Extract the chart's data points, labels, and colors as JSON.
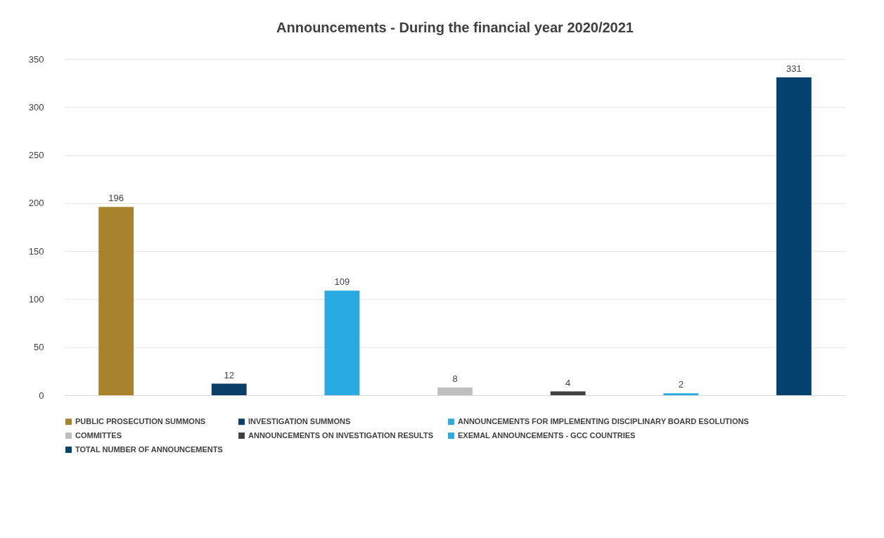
{
  "chart_data": {
    "type": "bar",
    "title": "Announcements - During the financial year 2020/2021",
    "categories": [
      null,
      null,
      null,
      null,
      null,
      null,
      null
    ],
    "series": [
      {
        "name": "PUBLIC PROSECUTION SUMMONS",
        "color": "#a8832c",
        "values": [
          196,
          null,
          null,
          null,
          null,
          null,
          null
        ]
      },
      {
        "name": "INVESTIGATION SUMMONS",
        "color": "#0c3e6a",
        "values": [
          null,
          12,
          null,
          null,
          null,
          null,
          null
        ]
      },
      {
        "name": "ANNOUNCEMENTS FOR IMPLEMENTING DISCIPLINARY BOARD ESOLUTIONS",
        "color": "#29aae2",
        "values": [
          null,
          null,
          109,
          null,
          null,
          null,
          null
        ]
      },
      {
        "name": "COMMITTES",
        "color": "#bfbfbf",
        "values": [
          null,
          null,
          null,
          8,
          null,
          null,
          null
        ]
      },
      {
        "name": "ANNOUNCEMENTS ON INVESTIGATION RESULTS",
        "color": "#404040",
        "values": [
          null,
          null,
          null,
          null,
          4,
          null,
          null
        ]
      },
      {
        "name": "EXEMAL ANNOUNCEMENTS - GCC COUNTRIES",
        "color": "#29aae2",
        "values": [
          null,
          null,
          null,
          null,
          null,
          2,
          null
        ]
      },
      {
        "name": "TOTAL NUMBER OF ANNOUNCEMENTS",
        "color": "#06426f",
        "values": [
          null,
          null,
          null,
          null,
          null,
          null,
          331
        ]
      }
    ],
    "ylim": [
      0,
      350
    ],
    "yticks": [
      0,
      50,
      100,
      150,
      200,
      250,
      300,
      350
    ],
    "grid": "y",
    "data_labels": true,
    "legend": "bottom"
  }
}
